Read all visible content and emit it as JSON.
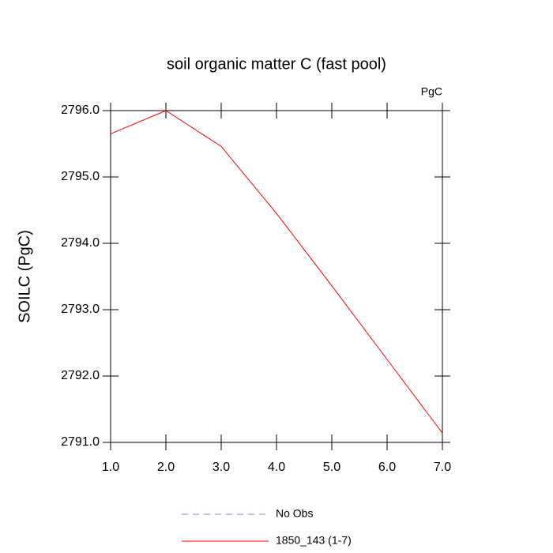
{
  "chart_data": {
    "type": "line",
    "title": "soil organic matter C (fast pool)",
    "units_annotation": "PgC",
    "ylabel": "SOILC  (PgC)",
    "x": [
      1,
      2,
      3,
      4,
      5,
      6,
      7
    ],
    "series": [
      {
        "name": "No Obs",
        "color": "#8080ff",
        "dashed": true,
        "values": [
          null,
          null,
          null,
          null,
          null,
          null,
          null
        ]
      },
      {
        "name": "1850_143 (1-7)",
        "color": "#ff0000",
        "dashed": false,
        "values": [
          2795.65,
          2796.0,
          2795.46,
          2794.45,
          2793.36,
          2792.25,
          2791.14
        ]
      }
    ],
    "xlim": [
      1,
      7
    ],
    "xticks": [
      {
        "value": 1,
        "label": "1.0"
      },
      {
        "value": 2,
        "label": "2.0"
      },
      {
        "value": 3,
        "label": "3.0"
      },
      {
        "value": 4,
        "label": "4.0"
      },
      {
        "value": 5,
        "label": "5.0"
      },
      {
        "value": 6,
        "label": "6.0"
      },
      {
        "value": 7,
        "label": "7.0"
      }
    ],
    "ylim": [
      2791,
      2796
    ],
    "yticks": [
      {
        "value": 2791,
        "label": "2791.0"
      },
      {
        "value": 2792,
        "label": "2792.0"
      },
      {
        "value": 2793,
        "label": "2793.0"
      },
      {
        "value": 2794,
        "label": "2794.0"
      },
      {
        "value": 2795,
        "label": "2795.0"
      },
      {
        "value": 2796,
        "label": "2796.0"
      }
    ],
    "grid": false,
    "legend": "bottom"
  }
}
